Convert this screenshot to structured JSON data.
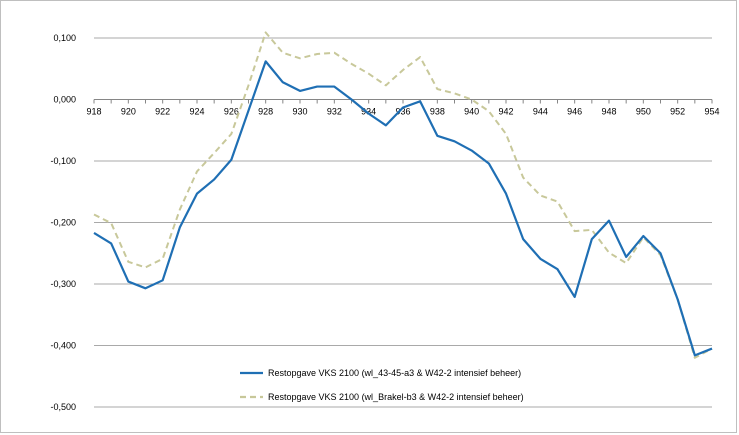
{
  "chart_data": {
    "type": "line",
    "title": "",
    "xlabel": "",
    "ylabel": "",
    "x": [
      918,
      919,
      920,
      921,
      922,
      923,
      924,
      925,
      926,
      927,
      928,
      929,
      930,
      931,
      932,
      933,
      934,
      935,
      936,
      937,
      938,
      939,
      940,
      941,
      942,
      943,
      944,
      945,
      946,
      947,
      948,
      949,
      950,
      951,
      952,
      953,
      954
    ],
    "xlim": [
      918,
      954
    ],
    "xticks": [
      "918",
      "920",
      "922",
      "924",
      "926",
      "928",
      "930",
      "932",
      "934",
      "936",
      "938",
      "940",
      "942",
      "944",
      "946",
      "948",
      "950",
      "952",
      "954"
    ],
    "ylim": [
      -0.5,
      0.1
    ],
    "yticks": [
      "0,100",
      "0,000",
      "-0,100",
      "-0,200",
      "-0,300",
      "-0,400",
      "-0,500"
    ],
    "grid": true,
    "legend_position": "bottom-center",
    "series": [
      {
        "name": "Restopgave VKS 2100 (wl_43-45-a3 & W42-2 intensief beheer)",
        "color": "#1f6fb4",
        "dash": "solid",
        "values": [
          -0.217,
          -0.234,
          -0.296,
          -0.307,
          -0.294,
          -0.208,
          -0.153,
          -0.13,
          -0.098,
          -0.018,
          0.062,
          0.028,
          0.014,
          0.021,
          0.021,
          0.0,
          -0.023,
          -0.042,
          -0.013,
          -0.003,
          -0.059,
          -0.068,
          -0.083,
          -0.104,
          -0.153,
          -0.227,
          -0.259,
          -0.276,
          -0.321,
          -0.227,
          -0.197,
          -0.256,
          -0.222,
          -0.25,
          -0.325,
          -0.416,
          -0.405
        ]
      },
      {
        "name": "Restopgave VKS 2100 (wl_Brakel-b3 & W42-2 intensief beheer)",
        "color": "#c8c89a",
        "dash": "dashed",
        "values": [
          -0.187,
          -0.201,
          -0.264,
          -0.273,
          -0.259,
          -0.179,
          -0.117,
          -0.087,
          -0.056,
          0.023,
          0.109,
          0.076,
          0.067,
          0.074,
          0.076,
          0.058,
          0.042,
          0.023,
          0.048,
          0.069,
          0.017,
          0.01,
          0.0,
          -0.019,
          -0.056,
          -0.127,
          -0.156,
          -0.166,
          -0.214,
          -0.212,
          -0.249,
          -0.266,
          -0.224,
          -0.253,
          -0.325,
          -0.42,
          -0.405
        ]
      }
    ]
  }
}
